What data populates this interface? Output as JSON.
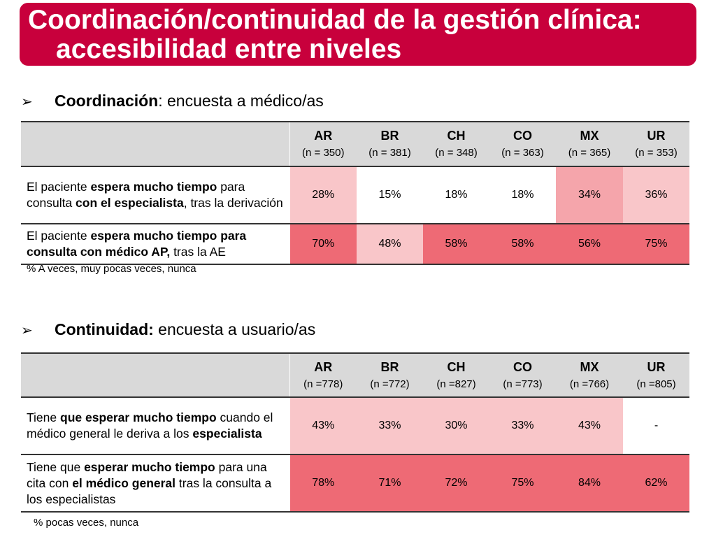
{
  "title": {
    "line1": "Coordinación/continuidad de la gestión clínica:",
    "line2": "accesibilidad entre niveles"
  },
  "section1": {
    "bullet": "➢",
    "bold": "Coordinación",
    "rest": ": encuesta a médico/as",
    "columns": [
      {
        "code": "AR",
        "n": "(n = 350)"
      },
      {
        "code": "BR",
        "n": "(n = 381)"
      },
      {
        "code": "CH",
        "n": "(n = 348)"
      },
      {
        "code": "CO",
        "n": "(n = 363)"
      },
      {
        "code": "MX",
        "n": "(n = 365)"
      },
      {
        "code": "UR",
        "n": "(n = 353)"
      }
    ],
    "rows": [
      {
        "label": [
          {
            "t": "El paciente ",
            "b": false
          },
          {
            "t": "espera mucho tiempo",
            "b": true
          },
          {
            "t": " para consulta ",
            "b": false
          },
          {
            "t": "con el especialista",
            "b": true
          },
          {
            "t": ", tras la derivación",
            "b": false
          }
        ],
        "cells": [
          {
            "v": "28%",
            "color": "#f9c6c9"
          },
          {
            "v": "15%",
            "color": "#ffffff"
          },
          {
            "v": "18%",
            "color": "#ffffff"
          },
          {
            "v": "18%",
            "color": "#ffffff"
          },
          {
            "v": "34%",
            "color": "#f5a5ab"
          },
          {
            "v": "36%",
            "color": "#f9c6c9"
          }
        ]
      },
      {
        "label": [
          {
            "t": "El paciente ",
            "b": false
          },
          {
            "t": "espera mucho tiempo para consulta con médico AP,",
            "b": true
          },
          {
            "t": " tras la AE",
            "b": false
          }
        ],
        "cells": [
          {
            "v": "70%",
            "color": "#ee6a75"
          },
          {
            "v": "48%",
            "color": "#f9c6c9"
          },
          {
            "v": "58%",
            "color": "#ee6a75"
          },
          {
            "v": "58%",
            "color": "#ee6a75"
          },
          {
            "v": "56%",
            "color": "#ee6a75"
          },
          {
            "v": "75%",
            "color": "#ee6a75"
          }
        ]
      }
    ],
    "footnote": "% A veces, muy pocas veces, nunca"
  },
  "section2": {
    "bullet": "➢",
    "bold": "Continuidad:",
    "rest": " encuesta a usuario/as",
    "columns": [
      {
        "code": "AR",
        "n": "(n =778)"
      },
      {
        "code": "BR",
        "n": "(n =772)"
      },
      {
        "code": "CH",
        "n": "(n =827)"
      },
      {
        "code": "CO",
        "n": "(n =773)"
      },
      {
        "code": "MX",
        "n": "(n =766)"
      },
      {
        "code": "UR",
        "n": "(n =805)"
      }
    ],
    "rows": [
      {
        "label": [
          {
            "t": "Tiene ",
            "b": false
          },
          {
            "t": "que esperar mucho tiempo",
            "b": true
          },
          {
            "t": " cuando el médico general le deriva a los ",
            "b": false
          },
          {
            "t": "especialista",
            "b": true
          }
        ],
        "cells": [
          {
            "v": "43%",
            "color": "#f9c6c9"
          },
          {
            "v": "33%",
            "color": "#f9c6c9"
          },
          {
            "v": "30%",
            "color": "#f9c6c9"
          },
          {
            "v": "33%",
            "color": "#f9c6c9"
          },
          {
            "v": "43%",
            "color": "#f9c6c9"
          },
          {
            "v": "-",
            "color": "#ffffff"
          }
        ]
      },
      {
        "label": [
          {
            "t": "Tiene que ",
            "b": false
          },
          {
            "t": "esperar mucho tiempo",
            "b": true
          },
          {
            "t": " para una cita con ",
            "b": false
          },
          {
            "t": "el médico general",
            "b": true
          },
          {
            "t": " tras la consulta a los especialistas",
            "b": false
          }
        ],
        "cells": [
          {
            "v": "78%",
            "color": "#ee6a75"
          },
          {
            "v": "71%",
            "color": "#ee6a75"
          },
          {
            "v": "72%",
            "color": "#ee6a75"
          },
          {
            "v": "75%",
            "color": "#ee6a75"
          },
          {
            "v": "84%",
            "color": "#ee6a75"
          },
          {
            "v": "62%",
            "color": "#ee6a75"
          }
        ]
      }
    ],
    "footnote": "% pocas veces, nunca"
  }
}
